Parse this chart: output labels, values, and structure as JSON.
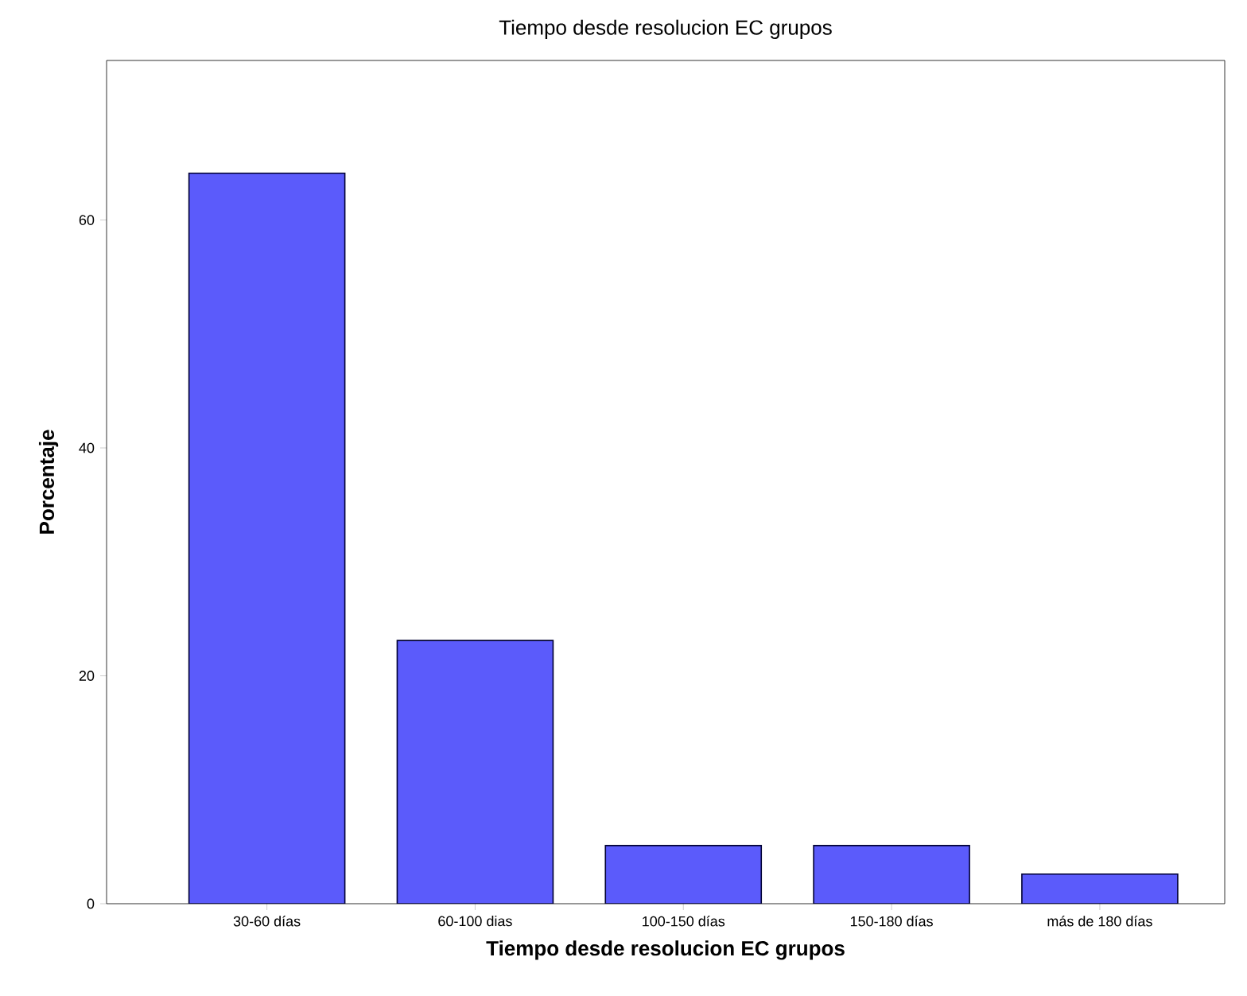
{
  "chart_data": {
    "type": "bar",
    "title": "Tiempo desde resolucion EC grupos",
    "xlabel": "Tiempo desde resolucion EC grupos",
    "ylabel": "Porcentaje",
    "categories": [
      "30-60 días",
      "60-100 dias",
      "100-150 días",
      "150-180 días",
      "más de 180 días"
    ],
    "values": [
      64.1,
      23.1,
      5.1,
      5.1,
      2.6
    ],
    "color": "#5b5bfb",
    "ylim": [
      0,
      74
    ],
    "yticks": [
      0,
      20,
      40,
      60
    ],
    "grid": false
  }
}
